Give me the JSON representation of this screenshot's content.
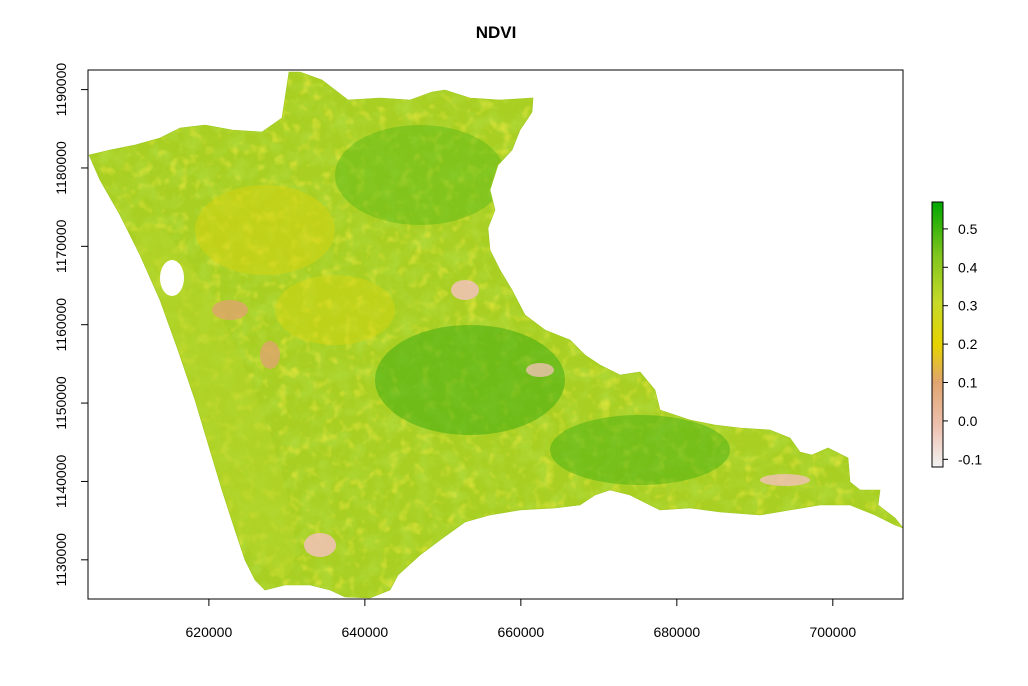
{
  "chart_data": {
    "type": "heatmap",
    "title": "NDVI",
    "xlabel": "",
    "ylabel": "",
    "xlim": [
      604500,
      709000
    ],
    "ylim": [
      1125000,
      1192500
    ],
    "x_ticks": [
      620000,
      640000,
      660000,
      680000,
      700000
    ],
    "y_ticks": [
      1130000,
      1140000,
      1150000,
      1160000,
      1170000,
      1180000,
      1190000
    ],
    "x_tick_labels": [
      "620000",
      "640000",
      "660000",
      "680000",
      "700000"
    ],
    "y_tick_labels": [
      "1130000",
      "1140000",
      "1150000",
      "1160000",
      "1170000",
      "1180000",
      "1190000"
    ],
    "legend": {
      "min": -0.12,
      "max": 0.57,
      "ticks": [
        -0.1,
        0.0,
        0.1,
        0.2,
        0.3,
        0.4,
        0.5
      ],
      "tick_labels": [
        "-0.1",
        "0.0",
        "0.1",
        "0.2",
        "0.3",
        "0.4",
        "0.5"
      ],
      "colors": [
        "#f2f2f2",
        "#eec2b1",
        "#e0a46f",
        "#e6d300",
        "#c6d928",
        "#7fc51d",
        "#00a600"
      ],
      "placement": "right"
    },
    "grid": false
  }
}
